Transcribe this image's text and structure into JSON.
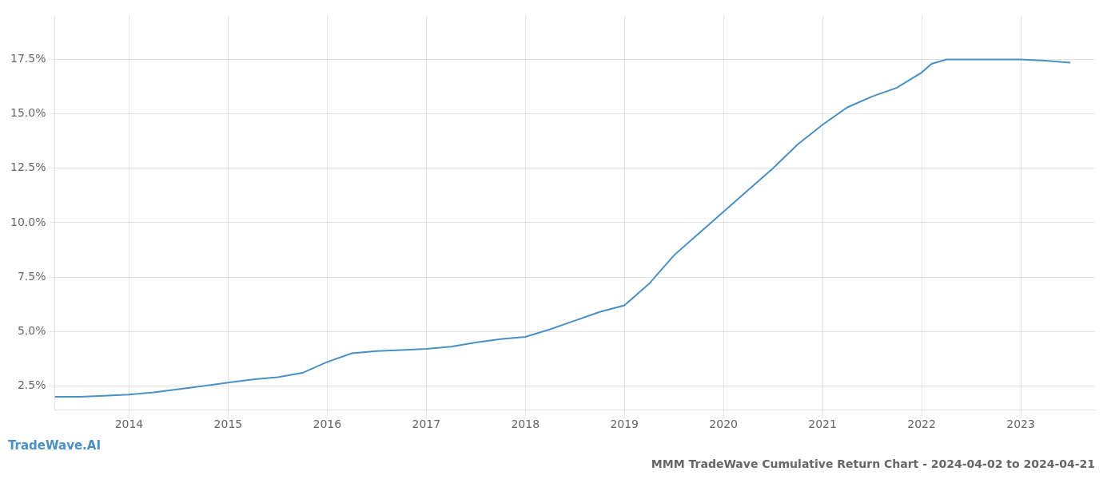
{
  "chart_data": {
    "type": "line",
    "title": "MMM TradeWave Cumulative Return Chart - 2024-04-02 to 2024-04-21",
    "annotations": [
      "TradeWave.AI"
    ],
    "color": "#4a90c4",
    "grid": true,
    "x": [
      2013.25,
      2013.5,
      2013.75,
      2014.0,
      2014.25,
      2014.5,
      2014.75,
      2015.0,
      2015.25,
      2015.5,
      2015.75,
      2016.0,
      2016.25,
      2016.5,
      2016.75,
      2017.0,
      2017.25,
      2017.5,
      2017.75,
      2018.0,
      2018.25,
      2018.5,
      2018.75,
      2019.0,
      2019.25,
      2019.5,
      2019.75,
      2020.0,
      2020.25,
      2020.5,
      2020.75,
      2021.0,
      2021.25,
      2021.5,
      2021.75,
      2022.0,
      2022.1,
      2022.25,
      2022.5,
      2022.75,
      2023.0,
      2023.25,
      2023.5
    ],
    "values": [
      2.0,
      2.0,
      2.05,
      2.1,
      2.2,
      2.35,
      2.5,
      2.65,
      2.8,
      2.9,
      3.1,
      3.6,
      4.0,
      4.1,
      4.15,
      4.2,
      4.3,
      4.5,
      4.65,
      4.75,
      5.1,
      5.5,
      5.9,
      6.2,
      7.2,
      8.5,
      9.5,
      10.5,
      11.5,
      12.5,
      13.6,
      14.5,
      15.3,
      15.8,
      16.2,
      16.9,
      17.3,
      17.5,
      17.5,
      17.5,
      17.5,
      17.45,
      17.35
    ],
    "xlim": [
      2013.25,
      2023.75
    ],
    "xticks": [
      2014,
      2015,
      2016,
      2017,
      2018,
      2019,
      2020,
      2021,
      2022,
      2023
    ],
    "ylim": [
      1.4,
      19.5
    ],
    "yticks": [
      {
        "value": 2.5,
        "label": "2.5%"
      },
      {
        "value": 5.0,
        "label": "5.0%"
      },
      {
        "value": 7.5,
        "label": "7.5%"
      },
      {
        "value": 10.0,
        "label": "10.0%"
      },
      {
        "value": 12.5,
        "label": "12.5%"
      },
      {
        "value": 15.0,
        "label": "15.0%"
      },
      {
        "value": 17.5,
        "label": "17.5%"
      }
    ]
  }
}
